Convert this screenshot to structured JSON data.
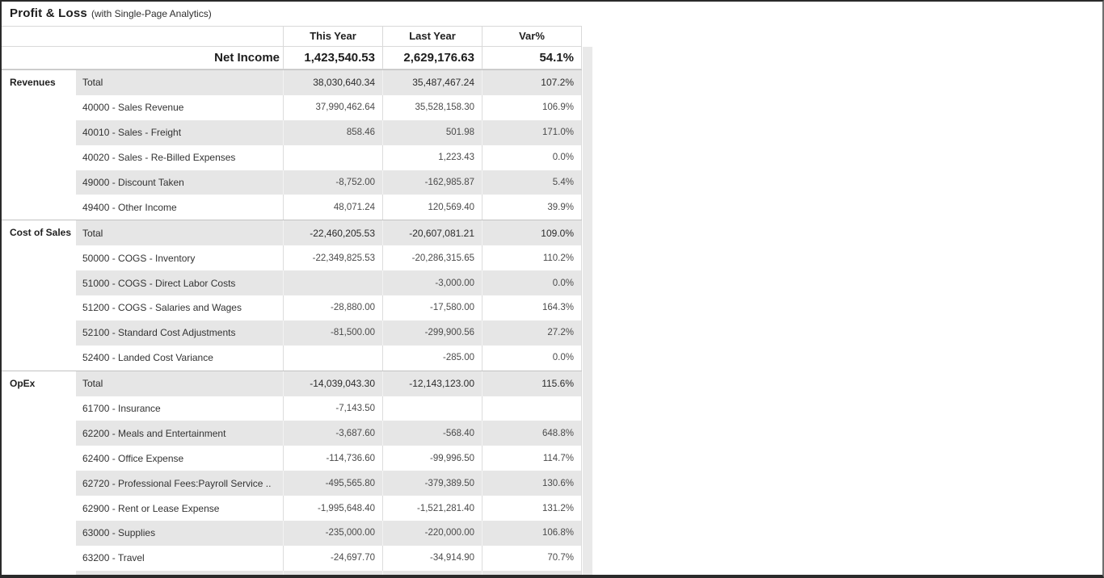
{
  "title": {
    "main": "Profit & Loss",
    "sub": "(with Single-Page Analytics)"
  },
  "columns": [
    "This Year",
    "Last Year",
    "Var%"
  ],
  "summary": {
    "label": "Net Income",
    "this_year": "1,423,540.53",
    "last_year": "2,629,176.63",
    "var": "54.1%"
  },
  "sections": [
    {
      "name": "Revenues",
      "rows": [
        [
          "Total",
          "38,030,640.34",
          "35,487,467.24",
          "107.2%"
        ],
        [
          "40000 - Sales Revenue",
          "37,990,462.64",
          "35,528,158.30",
          "106.9%"
        ],
        [
          "40010 - Sales - Freight",
          "858.46",
          "501.98",
          "171.0%"
        ],
        [
          "40020 - Sales - Re-Billed Expenses",
          "",
          "1,223.43",
          "0.0%"
        ],
        [
          "49000 - Discount Taken",
          "-8,752.00",
          "-162,985.87",
          "5.4%"
        ],
        [
          "49400 - Other Income",
          "48,071.24",
          "120,569.40",
          "39.9%"
        ]
      ]
    },
    {
      "name": "Cost of Sales",
      "rows": [
        [
          "Total",
          "-22,460,205.53",
          "-20,607,081.21",
          "109.0%"
        ],
        [
          "50000 - COGS - Inventory",
          "-22,349,825.53",
          "-20,286,315.65",
          "110.2%"
        ],
        [
          "51000 - COGS - Direct Labor Costs",
          "",
          "-3,000.00",
          "0.0%"
        ],
        [
          "51200 - COGS - Salaries and Wages",
          "-28,880.00",
          "-17,580.00",
          "164.3%"
        ],
        [
          "52100 - Standard Cost Adjustments",
          "-81,500.00",
          "-299,900.56",
          "27.2%"
        ],
        [
          "52400 - Landed Cost Variance",
          "",
          "-285.00",
          "0.0%"
        ]
      ]
    },
    {
      "name": "OpEx",
      "rows": [
        [
          "Total",
          "-14,039,043.30",
          "-12,143,123.00",
          "115.6%"
        ],
        [
          "61700 - Insurance",
          "-7,143.50",
          "",
          ""
        ],
        [
          "62200 - Meals and Entertainment",
          "-3,687.60",
          "-568.40",
          "648.8%"
        ],
        [
          "62400 - Office Expense",
          "-114,736.60",
          "-99,996.50",
          "114.7%"
        ],
        [
          "62720 - Professional Fees:Payroll Service ..",
          "-495,565.80",
          "-379,389.50",
          "130.6%"
        ],
        [
          "62900 - Rent or Lease Expense",
          "-1,995,648.40",
          "-1,521,281.40",
          "131.2%"
        ],
        [
          "63000 - Supplies",
          "-235,000.00",
          "-220,000.00",
          "106.8%"
        ],
        [
          "63200 - Travel",
          "-24,697.70",
          "-34,914.90",
          "70.7%"
        ]
      ]
    }
  ],
  "colors": {
    "band": "#e6e6e6",
    "border_light": "#d9d9d9",
    "border_col": "#dcdcdc",
    "border_section": "#c2c2c2",
    "scrollbar": "#e9e9e9"
  }
}
